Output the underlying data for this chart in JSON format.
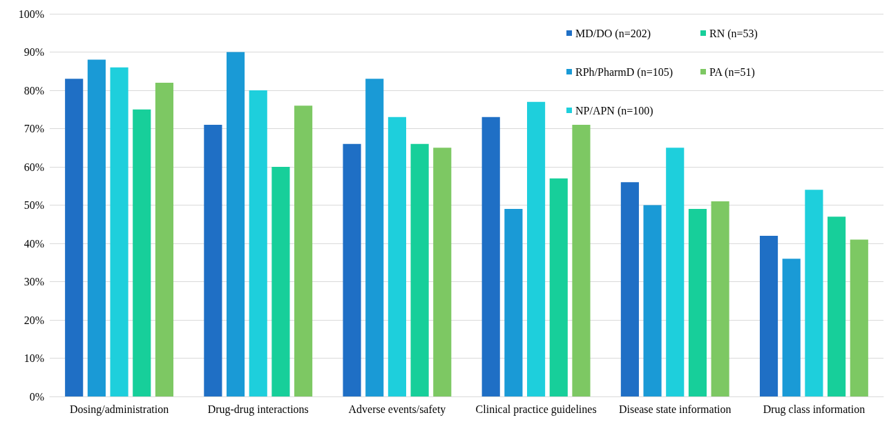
{
  "chart_data": {
    "type": "bar",
    "categories": [
      "Dosing/administration",
      "Drug-drug interactions",
      "Adverse events/safety",
      "Clinical practice guidelines",
      "Disease state information",
      "Drug class information"
    ],
    "series": [
      {
        "name": "MD/DO (n=202)",
        "color": "#1f6fc5",
        "values": [
          83,
          71,
          66,
          73,
          56,
          42
        ]
      },
      {
        "name": "RPh/PharmD (n=105)",
        "color": "#1a9ad6",
        "values": [
          88,
          90,
          83,
          49,
          50,
          36
        ]
      },
      {
        "name": "NP/APN (n=100)",
        "color": "#1ecfdc",
        "values": [
          86,
          80,
          73,
          77,
          65,
          54
        ]
      },
      {
        "name": "RN (n=53)",
        "color": "#17cf9a",
        "values": [
          75,
          60,
          66,
          57,
          49,
          47
        ]
      },
      {
        "name": "PA (n=51)",
        "color": "#7dc863",
        "values": [
          82,
          76,
          65,
          71,
          51,
          41
        ]
      }
    ],
    "ylim": [
      0,
      100
    ],
    "yticks": [
      {
        "value": 0,
        "label": "0%"
      },
      {
        "value": 10,
        "label": "10%"
      },
      {
        "value": 20,
        "label": "20%"
      },
      {
        "value": 30,
        "label": "30%"
      },
      {
        "value": 40,
        "label": "40%"
      },
      {
        "value": 50,
        "label": "50%"
      },
      {
        "value": 60,
        "label": "60%"
      },
      {
        "value": 70,
        "label": "70%"
      },
      {
        "value": 80,
        "label": "80%"
      },
      {
        "value": 90,
        "label": "90%"
      },
      {
        "value": 100,
        "label": "100%"
      }
    ],
    "grid": "y",
    "legend": "top right"
  }
}
